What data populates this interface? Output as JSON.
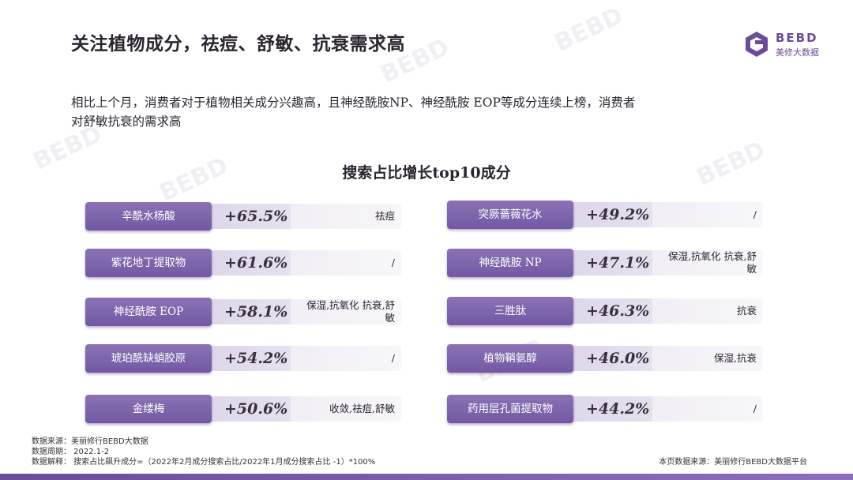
{
  "header": {
    "title": "关注植物成分，祛痘、舒敏、抗衰需求高"
  },
  "logo": {
    "en": "BEBD",
    "cn": "美修大数据",
    "icon": "hexagon-logo-icon",
    "color": "#6b4c9a"
  },
  "intro": {
    "line1": "相比上个月，消费者对于植物相关成分兴趣高，且神经酰胺NP、神经酰胺 EOP等成分连续上榜，消费者",
    "line2": "对舒敏抗衰的需求高"
  },
  "chart": {
    "title": "搜索占比增长top10成分"
  },
  "ingredients_left": [
    {
      "name": "辛酰水杨酸",
      "pct": "+65.5%",
      "effect": "祛痘"
    },
    {
      "name": "紫花地丁提取物",
      "pct": "+61.6%",
      "effect": "/"
    },
    {
      "name": "神经酰胺 EOP",
      "pct": "+58.1%",
      "effect": "保湿,抗氧化 抗衰,舒敏"
    },
    {
      "name": "琥珀酰缺蛸胶原",
      "pct": "+54.2%",
      "effect": "/"
    },
    {
      "name": "金缕梅",
      "pct": "+50.6%",
      "effect": "收敛,祛痘,舒敏"
    }
  ],
  "ingredients_right": [
    {
      "name": "突厥蔷薇花水",
      "pct": "+49.2%",
      "effect": "/"
    },
    {
      "name": "神经酰胺 NP",
      "pct": "+47.1%",
      "effect": "保湿,抗氧化 抗衰,舒敏"
    },
    {
      "name": "三胜肽",
      "pct": "+46.3%",
      "effect": "抗衰"
    },
    {
      "name": "植物鞘氨醇",
      "pct": "+46.0%",
      "effect": "保湿,抗衰"
    },
    {
      "name": "药用层孔菌提取物",
      "pct": "+44.2%",
      "effect": "/"
    }
  ],
  "footer": {
    "source": "数据来源：美丽修行BEBD大数据",
    "period": "数据周期：  2022.1-2",
    "explain": "数据解释：  搜索占比飙升成分=（2022年2月成分搜索占比/2022年1月成分搜索占比 -1）*100%",
    "page_source": "本页数据来源：美丽修行BEBD大数据平台"
  }
}
